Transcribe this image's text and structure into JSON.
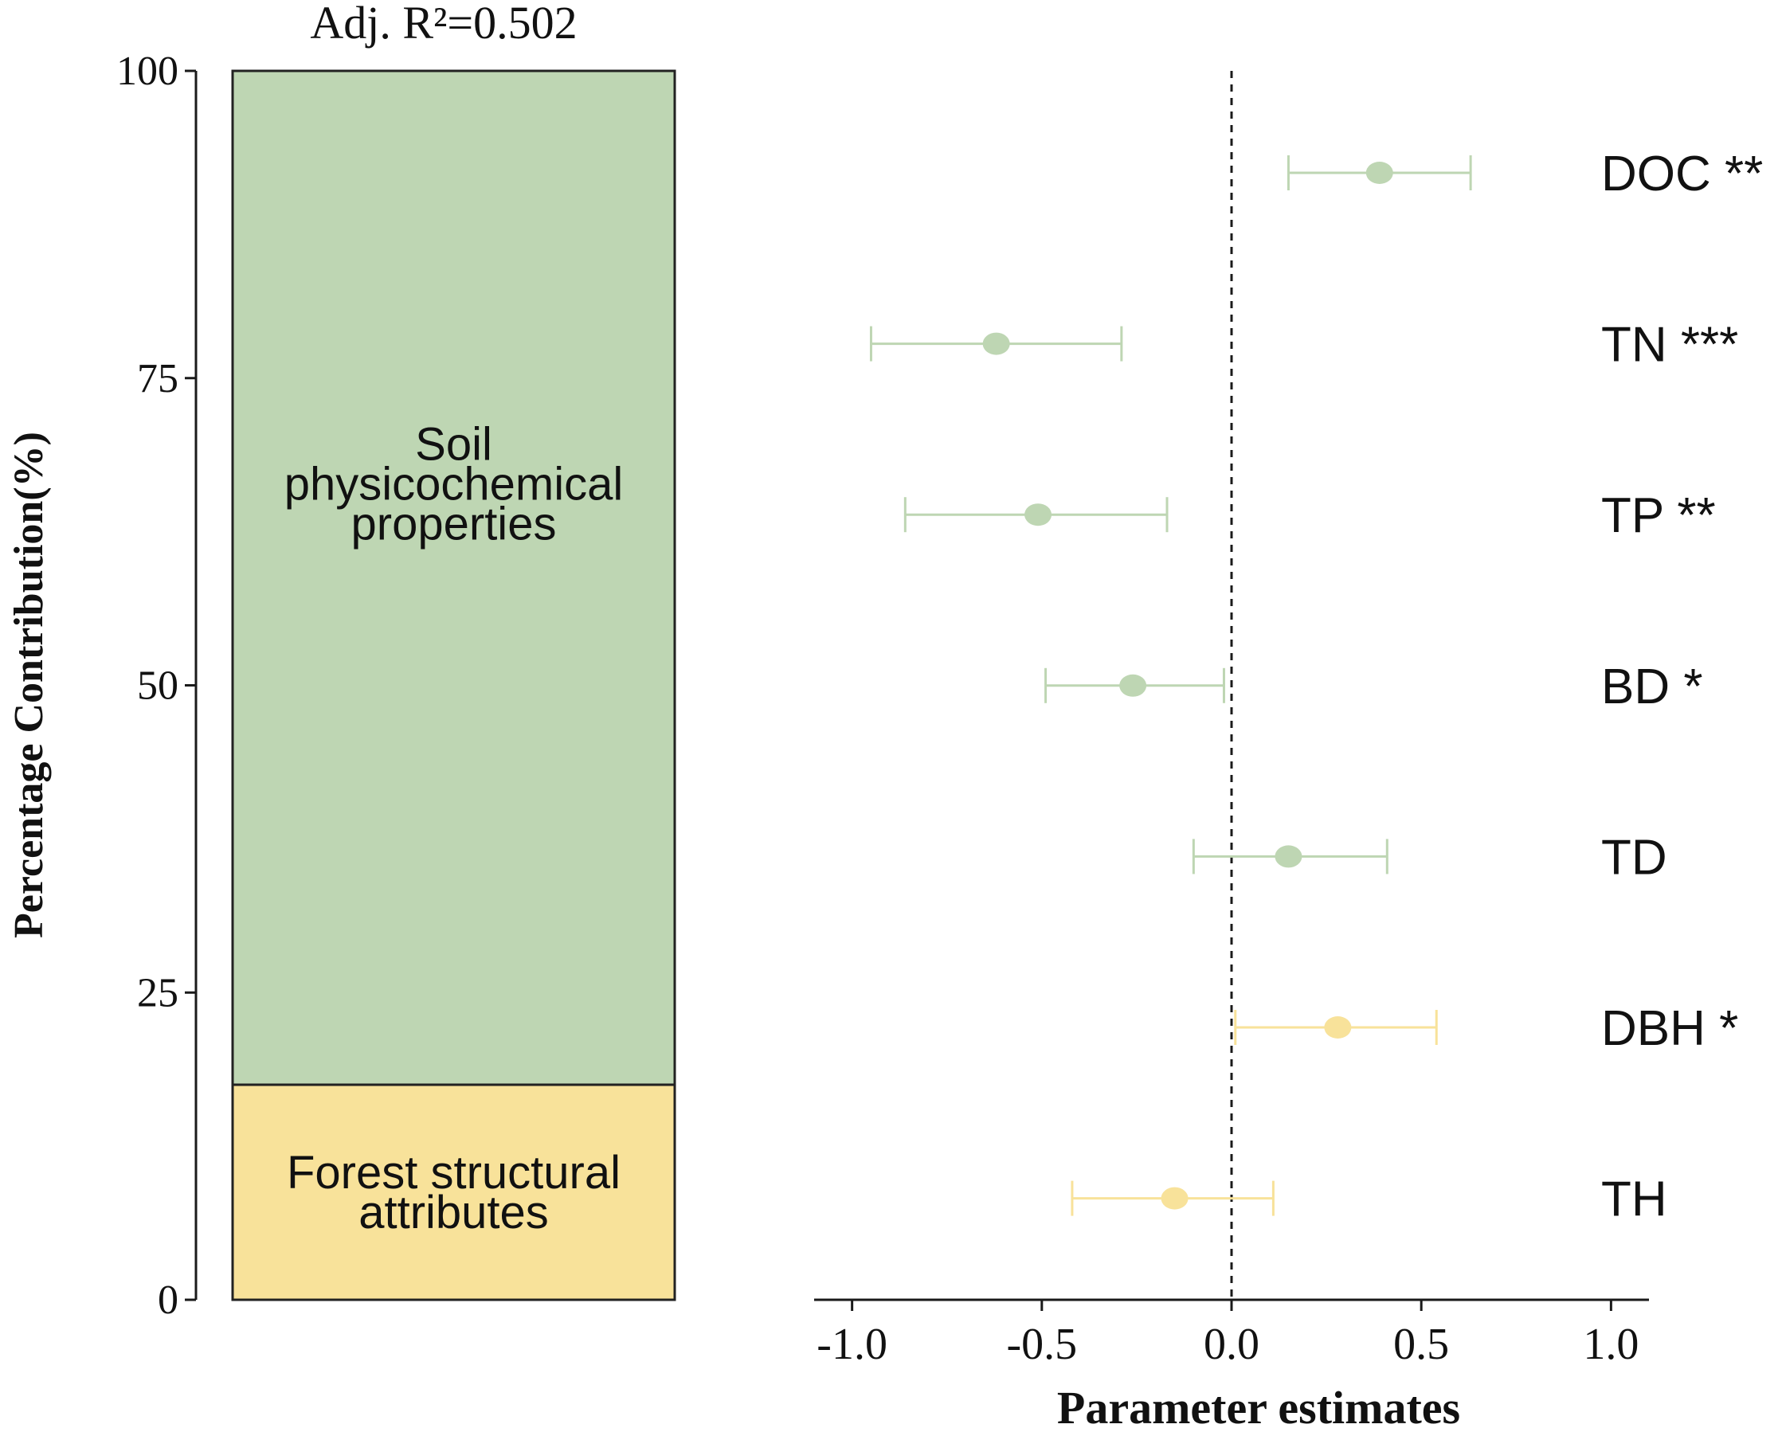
{
  "chart_data": [
    {
      "type": "bar",
      "subtype": "stacked-single-bar",
      "title": "Adj. R²=0.502",
      "ylabel": "Percentage Contribution(%)",
      "ylim": [
        0,
        100
      ],
      "yticks": [
        0,
        25,
        50,
        75,
        100
      ],
      "ytick_labels": [
        "0",
        "25",
        "50",
        "75",
        "100"
      ],
      "segments": [
        {
          "name_lines": [
            "Forest structural",
            "attributes"
          ],
          "value": 17.5,
          "color": "#f8e29a"
        },
        {
          "name_lines": [
            "Soil",
            "physicochemical",
            "properties"
          ],
          "value": 82.5,
          "color": "#bed6b3"
        }
      ]
    },
    {
      "type": "scatter",
      "subtype": "forest-plot",
      "xlabel": "Parameter estimates",
      "xlim": [
        -1.1,
        1.1
      ],
      "xticks": [
        -1.0,
        -0.5,
        0.0,
        0.5,
        1.0
      ],
      "xtick_labels": [
        "-1.0",
        "-0.5",
        "0.0",
        "0.5",
        "1.0"
      ],
      "reference_line": 0.0,
      "grid": false,
      "points": [
        {
          "label": "DOC **",
          "estimate": 0.39,
          "lower": 0.15,
          "upper": 0.63,
          "color": "#bed6b3"
        },
        {
          "label": "TN ***",
          "estimate": -0.62,
          "lower": -0.95,
          "upper": -0.29,
          "color": "#bed6b3"
        },
        {
          "label": "TP **",
          "estimate": -0.51,
          "lower": -0.86,
          "upper": -0.17,
          "color": "#bed6b3"
        },
        {
          "label": "BD *",
          "estimate": -0.26,
          "lower": -0.49,
          "upper": -0.02,
          "color": "#bed6b3"
        },
        {
          "label": "TD",
          "estimate": 0.15,
          "lower": -0.1,
          "upper": 0.41,
          "color": "#bed6b3"
        },
        {
          "label": "DBH *",
          "estimate": 0.28,
          "lower": 0.01,
          "upper": 0.54,
          "color": "#f8e29a"
        },
        {
          "label": "TH",
          "estimate": -0.15,
          "lower": -0.42,
          "upper": 0.11,
          "color": "#f8e29a"
        }
      ]
    }
  ]
}
